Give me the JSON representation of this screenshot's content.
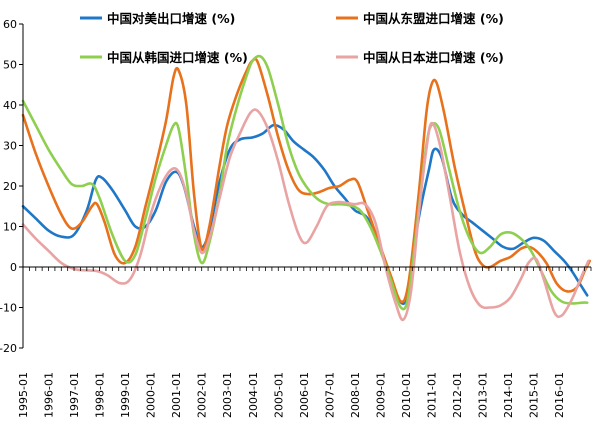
{
  "chart_data": {
    "type": "line",
    "title": "",
    "xlabel": "",
    "ylabel": "",
    "ylim": [
      -20,
      60
    ],
    "yticks": [
      -20,
      -10,
      0,
      10,
      20,
      30,
      40,
      50,
      60
    ],
    "ytick_labels": [
      "-20",
      "-10",
      "0",
      "10",
      "20",
      "30",
      "40",
      "50",
      "60"
    ],
    "xlim": [
      1995.0,
      2017.25
    ],
    "x_ticks": [
      1995,
      1996,
      1997,
      1998,
      1999,
      2000,
      2001,
      2002,
      2003,
      2004,
      2005,
      2006,
      2007,
      2008,
      2009,
      2010,
      2011,
      2012,
      2013,
      2014,
      2015,
      2016
    ],
    "x_tick_labels": [
      "1995-01",
      "1996-01",
      "1997-01",
      "1998-01",
      "1999-01",
      "2000-01",
      "2001-01",
      "2002-01",
      "2003-01",
      "2004-01",
      "2005-01",
      "2006-01",
      "2007-01",
      "2008-01",
      "2009-01",
      "2010-01",
      "2011-01",
      "2012-01",
      "2013-01",
      "2014-01",
      "2015-01",
      "2016-01"
    ],
    "grid": false,
    "legend_position": "top",
    "series": [
      {
        "name": "中国对美出口增速 (%)",
        "color": "#1f77c8",
        "points": [
          [
            1995.0,
            15
          ],
          [
            1995.5,
            12
          ],
          [
            1996.0,
            9
          ],
          [
            1996.5,
            7.5
          ],
          [
            1997.0,
            8
          ],
          [
            1997.5,
            14
          ],
          [
            1997.85,
            21.5
          ],
          [
            1998.1,
            22
          ],
          [
            1998.5,
            19
          ],
          [
            1999.0,
            14
          ],
          [
            1999.4,
            10
          ],
          [
            1999.8,
            10
          ],
          [
            2000.2,
            14
          ],
          [
            2000.6,
            21
          ],
          [
            2001.0,
            23.5
          ],
          [
            2001.3,
            20
          ],
          [
            2001.7,
            10
          ],
          [
            2002.0,
            5
          ],
          [
            2002.3,
            9
          ],
          [
            2002.7,
            21
          ],
          [
            2003.1,
            29
          ],
          [
            2003.5,
            31.5
          ],
          [
            2004.0,
            32
          ],
          [
            2004.4,
            33
          ],
          [
            2004.8,
            35
          ],
          [
            2005.2,
            34
          ],
          [
            2005.6,
            31
          ],
          [
            2006.0,
            29
          ],
          [
            2006.4,
            27
          ],
          [
            2006.8,
            24
          ],
          [
            2007.2,
            20
          ],
          [
            2007.6,
            17
          ],
          [
            2008.0,
            14
          ],
          [
            2008.5,
            12
          ],
          [
            2009.0,
            5
          ],
          [
            2009.4,
            -3
          ],
          [
            2009.85,
            -9
          ],
          [
            2010.1,
            -5
          ],
          [
            2010.5,
            12
          ],
          [
            2010.9,
            24
          ],
          [
            2011.1,
            29
          ],
          [
            2011.4,
            27
          ],
          [
            2011.8,
            17
          ],
          [
            2012.2,
            13
          ],
          [
            2012.6,
            11
          ],
          [
            2013.0,
            9
          ],
          [
            2013.4,
            7
          ],
          [
            2013.8,
            5
          ],
          [
            2014.2,
            4.5
          ],
          [
            2014.6,
            6
          ],
          [
            2015.0,
            7.2
          ],
          [
            2015.4,
            6.5
          ],
          [
            2015.8,
            4
          ],
          [
            2016.2,
            1.5
          ],
          [
            2016.5,
            -1
          ],
          [
            2016.8,
            -4
          ],
          [
            2017.1,
            -7
          ]
        ]
      },
      {
        "name": "中国从东盟进口增速 (%)",
        "color": "#e8711c",
        "points": [
          [
            1995.0,
            37.5
          ],
          [
            1995.5,
            28
          ],
          [
            1996.0,
            20
          ],
          [
            1996.5,
            13
          ],
          [
            1996.9,
            9.5
          ],
          [
            1997.3,
            11
          ],
          [
            1997.7,
            15
          ],
          [
            1997.9,
            15.5
          ],
          [
            1998.2,
            11
          ],
          [
            1998.6,
            3
          ],
          [
            1999.0,
            1
          ],
          [
            1999.4,
            5
          ],
          [
            1999.8,
            15
          ],
          [
            2000.2,
            25
          ],
          [
            2000.6,
            36
          ],
          [
            2000.9,
            47
          ],
          [
            2001.1,
            48.5
          ],
          [
            2001.4,
            40
          ],
          [
            2001.7,
            18
          ],
          [
            2002.0,
            4.5
          ],
          [
            2002.3,
            10
          ],
          [
            2002.7,
            25
          ],
          [
            2003.0,
            35
          ],
          [
            2003.4,
            43
          ],
          [
            2003.8,
            49
          ],
          [
            2004.0,
            51
          ],
          [
            2004.2,
            50.5
          ],
          [
            2004.6,
            42
          ],
          [
            2005.0,
            32
          ],
          [
            2005.4,
            24
          ],
          [
            2005.8,
            19
          ],
          [
            2006.2,
            18
          ],
          [
            2006.6,
            18.5
          ],
          [
            2007.0,
            19.5
          ],
          [
            2007.4,
            20
          ],
          [
            2007.8,
            21.5
          ],
          [
            2008.1,
            21
          ],
          [
            2008.5,
            14
          ],
          [
            2009.0,
            5
          ],
          [
            2009.4,
            -2
          ],
          [
            2009.8,
            -8.5
          ],
          [
            2010.1,
            -4
          ],
          [
            2010.5,
            18
          ],
          [
            2010.8,
            38
          ],
          [
            2011.0,
            45
          ],
          [
            2011.2,
            45.5
          ],
          [
            2011.5,
            38
          ],
          [
            2011.9,
            25
          ],
          [
            2012.3,
            14
          ],
          [
            2012.7,
            4
          ],
          [
            2013.0,
            0.5
          ],
          [
            2013.3,
            0
          ],
          [
            2013.7,
            1.5
          ],
          [
            2014.1,
            2.5
          ],
          [
            2014.5,
            4.5
          ],
          [
            2014.8,
            5
          ],
          [
            2015.1,
            4
          ],
          [
            2015.5,
            1
          ],
          [
            2015.9,
            -4
          ],
          [
            2016.3,
            -6
          ],
          [
            2016.7,
            -5
          ],
          [
            2017.0,
            -1
          ],
          [
            2017.2,
            1.5
          ]
        ]
      },
      {
        "name": "中国从韩国进口增速 (%)",
        "color": "#8fcf4f",
        "points": [
          [
            1995.0,
            41
          ],
          [
            1995.5,
            35
          ],
          [
            1996.0,
            29
          ],
          [
            1996.5,
            24
          ],
          [
            1996.9,
            20.5
          ],
          [
            1997.3,
            20
          ],
          [
            1997.7,
            20.5
          ],
          [
            1998.0,
            17
          ],
          [
            1998.5,
            8
          ],
          [
            1999.0,
            1.5
          ],
          [
            1999.4,
            3
          ],
          [
            1999.8,
            12
          ],
          [
            2000.2,
            22
          ],
          [
            2000.6,
            30
          ],
          [
            2000.9,
            35
          ],
          [
            2001.1,
            34
          ],
          [
            2001.4,
            22
          ],
          [
            2001.7,
            8
          ],
          [
            2002.0,
            1
          ],
          [
            2002.3,
            6
          ],
          [
            2002.7,
            18
          ],
          [
            2003.0,
            30
          ],
          [
            2003.4,
            40
          ],
          [
            2003.8,
            48
          ],
          [
            2004.0,
            51
          ],
          [
            2004.3,
            52
          ],
          [
            2004.6,
            49
          ],
          [
            2005.0,
            40
          ],
          [
            2005.4,
            30
          ],
          [
            2005.8,
            23
          ],
          [
            2006.2,
            19
          ],
          [
            2006.6,
            16.5
          ],
          [
            2007.0,
            15.5
          ],
          [
            2007.4,
            15.5
          ],
          [
            2007.8,
            15.2
          ],
          [
            2008.2,
            14
          ],
          [
            2008.6,
            10
          ],
          [
            2009.0,
            4
          ],
          [
            2009.4,
            -3
          ],
          [
            2009.8,
            -10
          ],
          [
            2010.1,
            -7
          ],
          [
            2010.5,
            14
          ],
          [
            2010.8,
            30
          ],
          [
            2011.0,
            35
          ],
          [
            2011.3,
            34
          ],
          [
            2011.7,
            24
          ],
          [
            2012.1,
            14
          ],
          [
            2012.5,
            7
          ],
          [
            2012.9,
            3.5
          ],
          [
            2013.3,
            5
          ],
          [
            2013.7,
            8
          ],
          [
            2014.1,
            8.5
          ],
          [
            2014.5,
            7
          ],
          [
            2014.9,
            4
          ],
          [
            2015.3,
            -1
          ],
          [
            2015.7,
            -6
          ],
          [
            2016.1,
            -8.5
          ],
          [
            2016.5,
            -9
          ],
          [
            2016.9,
            -8.8
          ],
          [
            2017.1,
            -8.8
          ]
        ]
      },
      {
        "name": "中国从日本进口增速 (%)",
        "color": "#e9a3a3",
        "points": [
          [
            1995.0,
            10.5
          ],
          [
            1995.5,
            7
          ],
          [
            1996.0,
            4
          ],
          [
            1996.5,
            1
          ],
          [
            1997.0,
            -0.5
          ],
          [
            1997.4,
            -0.8
          ],
          [
            1997.9,
            -1
          ],
          [
            1998.3,
            -2
          ],
          [
            1998.8,
            -4
          ],
          [
            1999.2,
            -3
          ],
          [
            1999.6,
            3
          ],
          [
            2000.0,
            13
          ],
          [
            2000.4,
            20
          ],
          [
            2000.8,
            24
          ],
          [
            2001.1,
            23.5
          ],
          [
            2001.4,
            18
          ],
          [
            2001.7,
            9
          ],
          [
            2002.0,
            3.5
          ],
          [
            2002.3,
            7
          ],
          [
            2002.7,
            17
          ],
          [
            2003.1,
            27
          ],
          [
            2003.5,
            33
          ],
          [
            2003.9,
            38
          ],
          [
            2004.2,
            38.5
          ],
          [
            2004.6,
            34
          ],
          [
            2005.0,
            26
          ],
          [
            2005.4,
            16
          ],
          [
            2005.8,
            8
          ],
          [
            2006.1,
            6
          ],
          [
            2006.5,
            10
          ],
          [
            2006.9,
            15
          ],
          [
            2007.3,
            16
          ],
          [
            2007.7,
            15.8
          ],
          [
            2008.0,
            15.5
          ],
          [
            2008.4,
            15.5
          ],
          [
            2008.8,
            11
          ],
          [
            2009.2,
            0
          ],
          [
            2009.6,
            -9
          ],
          [
            2009.9,
            -13
          ],
          [
            2010.2,
            -6
          ],
          [
            2010.5,
            13
          ],
          [
            2010.8,
            29
          ],
          [
            2011.0,
            35.5
          ],
          [
            2011.3,
            31
          ],
          [
            2011.7,
            18
          ],
          [
            2012.1,
            4
          ],
          [
            2012.5,
            -5
          ],
          [
            2012.9,
            -9.5
          ],
          [
            2013.3,
            -10
          ],
          [
            2013.7,
            -9.5
          ],
          [
            2014.1,
            -7.5
          ],
          [
            2014.5,
            -3
          ],
          [
            2014.8,
            1
          ],
          [
            2015.1,
            2
          ],
          [
            2015.4,
            -3
          ],
          [
            2015.8,
            -11
          ],
          [
            2016.1,
            -12
          ],
          [
            2016.5,
            -8
          ],
          [
            2016.9,
            -2
          ],
          [
            2017.15,
            1.5
          ]
        ]
      }
    ]
  }
}
